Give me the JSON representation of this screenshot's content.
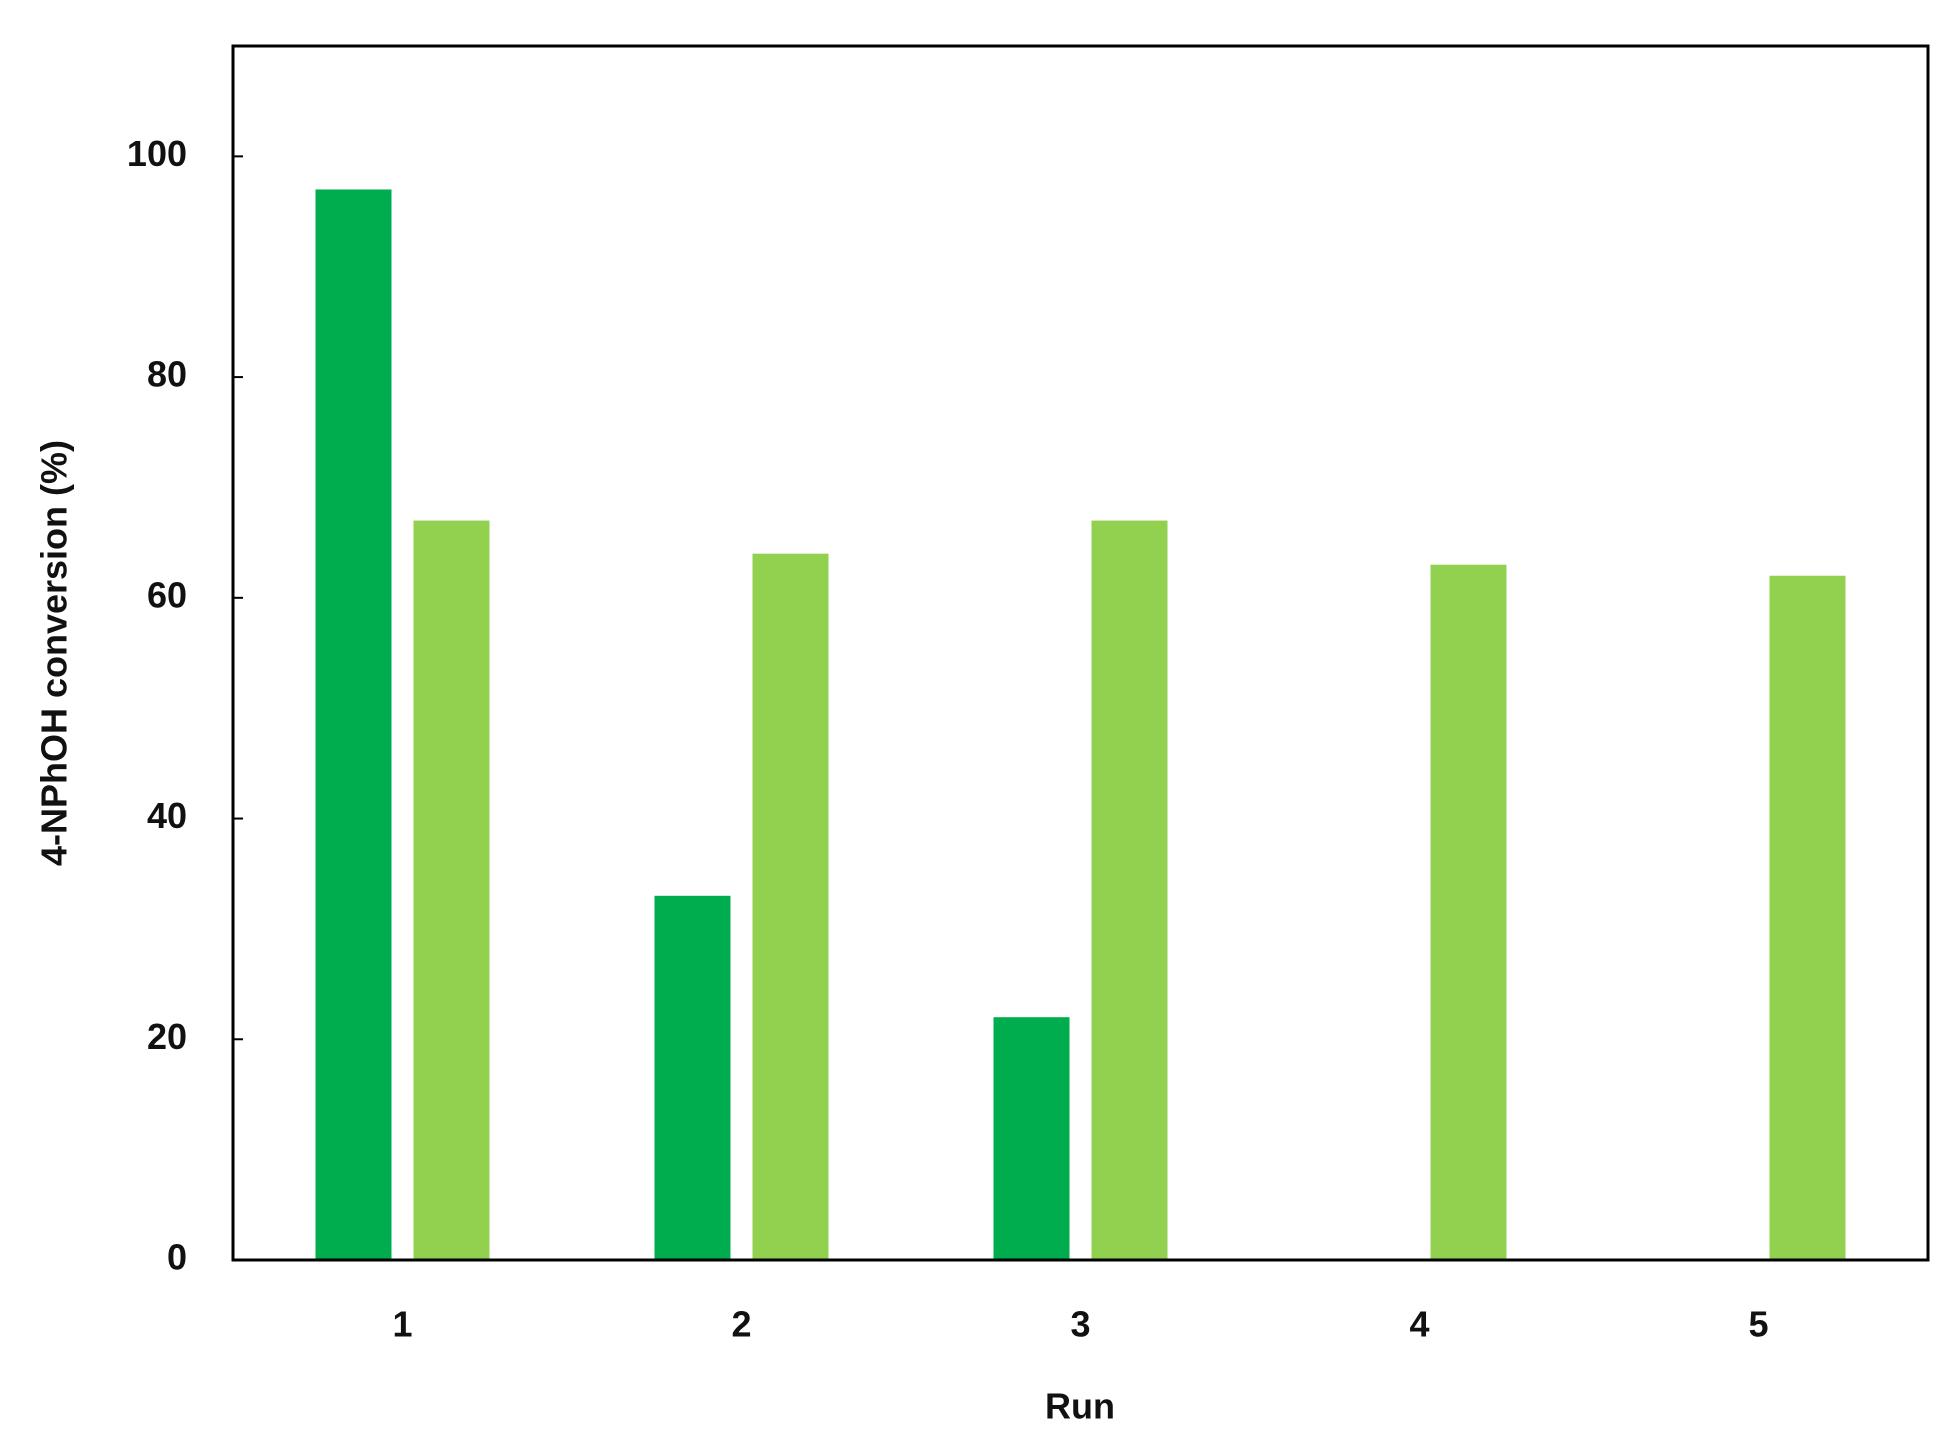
{
  "chart_data": {
    "type": "bar",
    "x_label": "Run",
    "y_label": "4-NPhOH conversion (%)",
    "categories": [
      "1",
      "2",
      "3",
      "4",
      "5"
    ],
    "series": [
      {
        "color": "#00ad4e",
        "values": [
          97,
          33,
          22,
          0,
          0
        ]
      },
      {
        "color": "#92d050",
        "values": [
          67,
          64,
          67,
          63,
          62
        ]
      }
    ],
    "ylim": [
      0,
      110
    ],
    "yticks": [
      0,
      20,
      40,
      60,
      80,
      100
    ]
  }
}
